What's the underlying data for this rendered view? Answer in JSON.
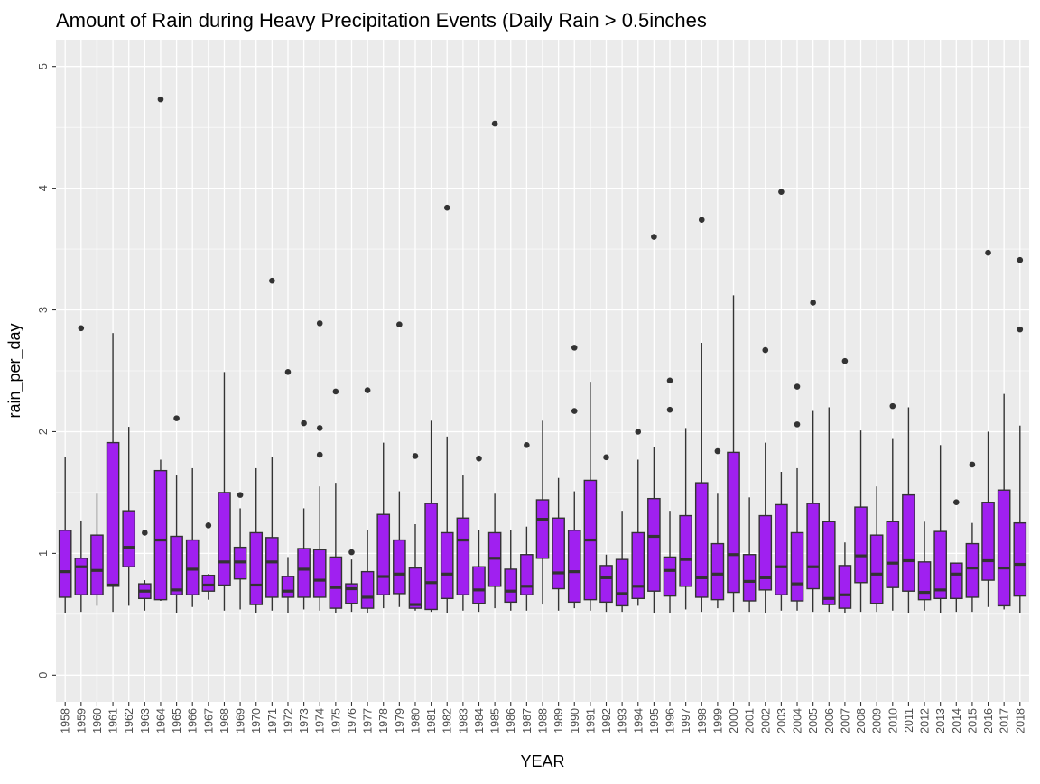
{
  "chart_data": {
    "type": "boxplot",
    "title": "Amount of Rain during Heavy Precipitation Events (Daily Rain > 0.5inches",
    "xlabel": "YEAR",
    "ylabel": "rain_per_day",
    "ylim": [
      -0.22,
      5.22
    ],
    "yticks": [
      0,
      1,
      2,
      3,
      4,
      5
    ],
    "grid": true,
    "box_fill": "#a020f0",
    "box_stroke": "#333333",
    "panel_bg": "#ebebeb",
    "grid_color": "#ffffff",
    "categories": [
      "1958",
      "1959",
      "1960",
      "1961",
      "1962",
      "1963",
      "1964",
      "1965",
      "1966",
      "1967",
      "1968",
      "1969",
      "1970",
      "1971",
      "1972",
      "1973",
      "1974",
      "1975",
      "1976",
      "1977",
      "1978",
      "1979",
      "1980",
      "1981",
      "1982",
      "1983",
      "1984",
      "1985",
      "1986",
      "1987",
      "1988",
      "1989",
      "1990",
      "1991",
      "1992",
      "1993",
      "1994",
      "1995",
      "1996",
      "1997",
      "1998",
      "1999",
      "2000",
      "2001",
      "2002",
      "2003",
      "2004",
      "2005",
      "2006",
      "2007",
      "2008",
      "2009",
      "2010",
      "2011",
      "2012",
      "2013",
      "2014",
      "2015",
      "2016",
      "2017",
      "2018"
    ],
    "boxes": [
      {
        "low": 0.51,
        "q1": 0.64,
        "median": 0.85,
        "q3": 1.19,
        "high": 1.79,
        "outliers": []
      },
      {
        "low": 0.52,
        "q1": 0.66,
        "median": 0.89,
        "q3": 0.96,
        "high": 1.27,
        "outliers": [
          2.85
        ]
      },
      {
        "low": 0.57,
        "q1": 0.66,
        "median": 0.86,
        "q3": 1.15,
        "high": 1.49,
        "outliers": []
      },
      {
        "low": 0.52,
        "q1": 0.73,
        "median": 0.74,
        "q3": 1.91,
        "high": 2.81,
        "outliers": []
      },
      {
        "low": 0.57,
        "q1": 0.89,
        "median": 1.05,
        "q3": 1.35,
        "high": 2.04,
        "outliers": []
      },
      {
        "low": 0.53,
        "q1": 0.63,
        "median": 0.69,
        "q3": 0.75,
        "high": 0.78,
        "outliers": [
          1.17
        ]
      },
      {
        "low": 0.61,
        "q1": 0.62,
        "median": 1.11,
        "q3": 1.68,
        "high": 1.77,
        "outliers": [
          4.73
        ]
      },
      {
        "low": 0.51,
        "q1": 0.66,
        "median": 0.7,
        "q3": 1.14,
        "high": 1.64,
        "outliers": [
          2.11
        ]
      },
      {
        "low": 0.56,
        "q1": 0.66,
        "median": 0.87,
        "q3": 1.11,
        "high": 1.7,
        "outliers": []
      },
      {
        "low": 0.62,
        "q1": 0.69,
        "median": 0.74,
        "q3": 0.82,
        "high": 0.83,
        "outliers": [
          1.23
        ]
      },
      {
        "low": 0.53,
        "q1": 0.74,
        "median": 0.93,
        "q3": 1.5,
        "high": 2.49,
        "outliers": []
      },
      {
        "low": 0.54,
        "q1": 0.79,
        "median": 0.93,
        "q3": 1.05,
        "high": 1.37,
        "outliers": [
          1.48
        ]
      },
      {
        "low": 0.51,
        "q1": 0.58,
        "median": 0.74,
        "q3": 1.17,
        "high": 1.7,
        "outliers": []
      },
      {
        "low": 0.53,
        "q1": 0.64,
        "median": 0.93,
        "q3": 1.13,
        "high": 1.79,
        "outliers": [
          3.24
        ]
      },
      {
        "low": 0.51,
        "q1": 0.64,
        "median": 0.69,
        "q3": 0.81,
        "high": 0.97,
        "outliers": [
          2.49
        ]
      },
      {
        "low": 0.54,
        "q1": 0.64,
        "median": 0.87,
        "q3": 1.04,
        "high": 1.37,
        "outliers": [
          2.07
        ]
      },
      {
        "low": 0.53,
        "q1": 0.64,
        "median": 0.78,
        "q3": 1.03,
        "high": 1.55,
        "outliers": [
          2.89,
          2.03,
          1.81
        ]
      },
      {
        "low": 0.51,
        "q1": 0.55,
        "median": 0.72,
        "q3": 0.97,
        "high": 1.58,
        "outliers": [
          2.33
        ]
      },
      {
        "low": 0.52,
        "q1": 0.59,
        "median": 0.71,
        "q3": 0.75,
        "high": 0.95,
        "outliers": [
          1.01
        ]
      },
      {
        "low": 0.51,
        "q1": 0.55,
        "median": 0.64,
        "q3": 0.85,
        "high": 1.19,
        "outliers": [
          2.34
        ]
      },
      {
        "low": 0.55,
        "q1": 0.66,
        "median": 0.81,
        "q3": 1.32,
        "high": 1.91,
        "outliers": []
      },
      {
        "low": 0.56,
        "q1": 0.67,
        "median": 0.83,
        "q3": 1.11,
        "high": 1.51,
        "outliers": [
          2.88
        ]
      },
      {
        "low": 0.53,
        "q1": 0.55,
        "median": 0.58,
        "q3": 0.88,
        "high": 1.24,
        "outliers": [
          1.8
        ]
      },
      {
        "low": 0.52,
        "q1": 0.54,
        "median": 0.76,
        "q3": 1.41,
        "high": 2.09,
        "outliers": []
      },
      {
        "low": 0.51,
        "q1": 0.63,
        "median": 0.83,
        "q3": 1.17,
        "high": 1.96,
        "outliers": [
          3.84
        ]
      },
      {
        "low": 0.53,
        "q1": 0.66,
        "median": 1.11,
        "q3": 1.29,
        "high": 1.64,
        "outliers": []
      },
      {
        "low": 0.52,
        "q1": 0.59,
        "median": 0.7,
        "q3": 0.89,
        "high": 1.19,
        "outliers": [
          1.78
        ]
      },
      {
        "low": 0.55,
        "q1": 0.73,
        "median": 0.96,
        "q3": 1.17,
        "high": 1.49,
        "outliers": [
          4.53
        ]
      },
      {
        "low": 0.53,
        "q1": 0.6,
        "median": 0.69,
        "q3": 0.87,
        "high": 1.19,
        "outliers": []
      },
      {
        "low": 0.53,
        "q1": 0.66,
        "median": 0.73,
        "q3": 0.99,
        "high": 1.22,
        "outliers": [
          1.89
        ]
      },
      {
        "low": 0.58,
        "q1": 0.96,
        "median": 1.28,
        "q3": 1.44,
        "high": 2.09,
        "outliers": []
      },
      {
        "low": 0.53,
        "q1": 0.71,
        "median": 0.84,
        "q3": 1.29,
        "high": 1.62,
        "outliers": []
      },
      {
        "low": 0.55,
        "q1": 0.6,
        "median": 0.85,
        "q3": 1.19,
        "high": 1.51,
        "outliers": [
          2.69,
          2.17
        ]
      },
      {
        "low": 0.53,
        "q1": 0.62,
        "median": 1.11,
        "q3": 1.6,
        "high": 2.41,
        "outliers": []
      },
      {
        "low": 0.52,
        "q1": 0.6,
        "median": 0.8,
        "q3": 0.9,
        "high": 0.99,
        "outliers": [
          1.79
        ]
      },
      {
        "low": 0.52,
        "q1": 0.57,
        "median": 0.67,
        "q3": 0.95,
        "high": 1.35,
        "outliers": []
      },
      {
        "low": 0.57,
        "q1": 0.63,
        "median": 0.73,
        "q3": 1.17,
        "high": 1.77,
        "outliers": [
          2.0
        ]
      },
      {
        "low": 0.51,
        "q1": 0.69,
        "median": 1.14,
        "q3": 1.45,
        "high": 1.87,
        "outliers": [
          3.6
        ]
      },
      {
        "low": 0.51,
        "q1": 0.65,
        "median": 0.86,
        "q3": 0.97,
        "high": 1.35,
        "outliers": [
          2.42,
          2.18
        ]
      },
      {
        "low": 0.54,
        "q1": 0.73,
        "median": 0.95,
        "q3": 1.31,
        "high": 2.03,
        "outliers": []
      },
      {
        "low": 0.52,
        "q1": 0.64,
        "median": 0.8,
        "q3": 1.58,
        "high": 2.73,
        "outliers": [
          3.74
        ]
      },
      {
        "low": 0.55,
        "q1": 0.62,
        "median": 0.83,
        "q3": 1.08,
        "high": 1.49,
        "outliers": [
          1.84
        ]
      },
      {
        "low": 0.52,
        "q1": 0.68,
        "median": 0.99,
        "q3": 1.83,
        "high": 3.12,
        "outliers": []
      },
      {
        "low": 0.52,
        "q1": 0.61,
        "median": 0.77,
        "q3": 0.99,
        "high": 1.46,
        "outliers": []
      },
      {
        "low": 0.51,
        "q1": 0.7,
        "median": 0.8,
        "q3": 1.31,
        "high": 1.91,
        "outliers": [
          2.67
        ]
      },
      {
        "low": 0.53,
        "q1": 0.66,
        "median": 0.89,
        "q3": 1.4,
        "high": 1.67,
        "outliers": [
          3.97
        ]
      },
      {
        "low": 0.53,
        "q1": 0.61,
        "median": 0.75,
        "q3": 1.17,
        "high": 1.7,
        "outliers": [
          2.37,
          2.06
        ]
      },
      {
        "low": 0.52,
        "q1": 0.71,
        "median": 0.89,
        "q3": 1.41,
        "high": 2.17,
        "outliers": [
          3.06
        ]
      },
      {
        "low": 0.52,
        "q1": 0.58,
        "median": 0.63,
        "q3": 1.26,
        "high": 2.2,
        "outliers": []
      },
      {
        "low": 0.51,
        "q1": 0.55,
        "median": 0.66,
        "q3": 0.9,
        "high": 1.09,
        "outliers": [
          2.58
        ]
      },
      {
        "low": 0.52,
        "q1": 0.76,
        "median": 0.98,
        "q3": 1.38,
        "high": 2.01,
        "outliers": []
      },
      {
        "low": 0.52,
        "q1": 0.59,
        "median": 0.83,
        "q3": 1.15,
        "high": 1.55,
        "outliers": []
      },
      {
        "low": 0.53,
        "q1": 0.72,
        "median": 0.92,
        "q3": 1.26,
        "high": 1.94,
        "outliers": [
          2.21
        ]
      },
      {
        "low": 0.51,
        "q1": 0.69,
        "median": 0.94,
        "q3": 1.48,
        "high": 2.2,
        "outliers": []
      },
      {
        "low": 0.53,
        "q1": 0.62,
        "median": 0.68,
        "q3": 0.93,
        "high": 1.26,
        "outliers": []
      },
      {
        "low": 0.51,
        "q1": 0.63,
        "median": 0.7,
        "q3": 1.18,
        "high": 1.89,
        "outliers": []
      },
      {
        "low": 0.52,
        "q1": 0.63,
        "median": 0.83,
        "q3": 0.92,
        "high": 0.92,
        "outliers": [
          1.42
        ]
      },
      {
        "low": 0.52,
        "q1": 0.64,
        "median": 0.88,
        "q3": 1.08,
        "high": 1.25,
        "outliers": [
          1.73
        ]
      },
      {
        "low": 0.56,
        "q1": 0.78,
        "median": 0.94,
        "q3": 1.42,
        "high": 2.0,
        "outliers": [
          3.47
        ]
      },
      {
        "low": 0.54,
        "q1": 0.57,
        "median": 0.88,
        "q3": 1.52,
        "high": 2.31,
        "outliers": []
      },
      {
        "low": 0.51,
        "q1": 0.65,
        "median": 0.91,
        "q3": 1.25,
        "high": 2.05,
        "outliers": [
          3.41,
          2.84
        ]
      }
    ]
  }
}
